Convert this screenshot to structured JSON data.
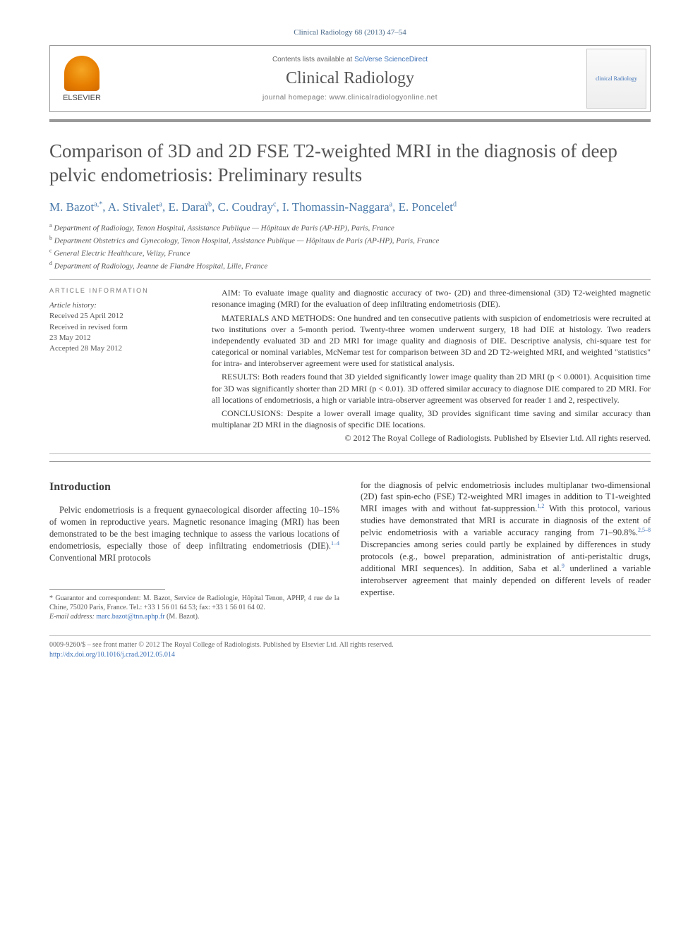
{
  "page_header": "Clinical Radiology 68 (2013) 47–54",
  "masthead": {
    "publisher": "ELSEVIER",
    "contents_prefix": "Contents lists available at ",
    "contents_link": "SciVerse ScienceDirect",
    "journal": "Clinical Radiology",
    "homepage_prefix": "journal homepage: ",
    "homepage_url": "www.clinicalradiologyonline.net",
    "cover_title": "clinical Radiology"
  },
  "article": {
    "title": "Comparison of 3D and 2D FSE T2-weighted MRI in the diagnosis of deep pelvic endometriosis: Preliminary results",
    "authors_html": "M. Bazot",
    "authors": [
      {
        "name": "M. Bazot",
        "marks": "a,*"
      },
      {
        "name": "A. Stivalet",
        "marks": "a"
      },
      {
        "name": "E. Daraï",
        "marks": "b"
      },
      {
        "name": "C. Coudray",
        "marks": "c"
      },
      {
        "name": "I. Thomassin-Naggara",
        "marks": "a"
      },
      {
        "name": "E. Poncelet",
        "marks": "d"
      }
    ],
    "affiliations": [
      {
        "mark": "a",
        "text": "Department of Radiology, Tenon Hospital, Assistance Publique — Hôpitaux de Paris (AP-HP), Paris, France"
      },
      {
        "mark": "b",
        "text": "Department Obstetrics and Gynecology, Tenon Hospital, Assistance Publique — Hôpitaux de Paris (AP-HP), Paris, France"
      },
      {
        "mark": "c",
        "text": "General Electric Healthcare, Velizy, France"
      },
      {
        "mark": "d",
        "text": "Department of Radiology, Jeanne de Flandre Hospital, Lille, France"
      }
    ]
  },
  "info": {
    "heading": "ARTICLE INFORMATION",
    "history_label": "Article history:",
    "received": "Received 25 April 2012",
    "revised1": "Received in revised form",
    "revised2": "23 May 2012",
    "accepted": "Accepted 28 May 2012"
  },
  "abstract": {
    "aim": "AIM: To evaluate image quality and diagnostic accuracy of two- (2D) and three-dimensional (3D) T2-weighted magnetic resonance imaging (MRI) for the evaluation of deep infiltrating endometriosis (DIE).",
    "methods": "MATERIALS AND METHODS: One hundred and ten consecutive patients with suspicion of endometriosis were recruited at two institutions over a 5-month period. Twenty-three women underwent surgery, 18 had DIE at histology. Two readers independently evaluated 3D and 2D MRI for image quality and diagnosis of DIE. Descriptive analysis, chi-square test for categorical or nominal variables, McNemar test for comparison between 3D and 2D T2-weighted MRI, and weighted \"statistics\" for intra- and interobserver agreement were used for statistical analysis.",
    "results": "RESULTS: Both readers found that 3D yielded significantly lower image quality than 2D MRI (p < 0.0001). Acquisition time for 3D was significantly shorter than 2D MRI (p < 0.01). 3D offered similar accuracy to diagnose DIE compared to 2D MRI. For all locations of endometriosis, a high or variable intra-observer agreement was observed for reader 1 and 2, respectively.",
    "conclusions": "CONCLUSIONS: Despite a lower overall image quality, 3D provides significant time saving and similar accuracy than multiplanar 2D MRI in the diagnosis of specific DIE locations.",
    "copyright": "© 2012 The Royal College of Radiologists. Published by Elsevier Ltd. All rights reserved."
  },
  "body": {
    "intro_heading": "Introduction",
    "col1_p1": "Pelvic endometriosis is a frequent gynaecological disorder affecting 10–15% of women in reproductive years. Magnetic resonance imaging (MRI) has been demonstrated to be the best imaging technique to assess the various locations of endometriosis, especially those of deep infiltrating endometriosis (DIE).",
    "col1_ref1": "1–4",
    "col1_p1b": " Conventional MRI protocols",
    "col2_p1a": "for the diagnosis of pelvic endometriosis includes multiplanar two-dimensional (2D) fast spin-echo (FSE) T2-weighted MRI images in addition to T1-weighted MRI images with and without fat-suppression.",
    "col2_ref1": "1,2",
    "col2_p1b": " With this protocol, various studies have demonstrated that MRI is accurate in diagnosis of the extent of pelvic endometriosis with a variable accuracy ranging from 71–90.8%.",
    "col2_ref2": "2,5–8",
    "col2_p1c": " Discrepancies among series could partly be explained by differences in study protocols (e.g., bowel preparation, administration of anti-peristaltic drugs, additional MRI sequences). In addition, Saba et al.",
    "col2_ref3": "9",
    "col2_p1d": " underlined a variable interobserver agreement that mainly depended on different levels of reader expertise."
  },
  "footnotes": {
    "guarantor": "* Guarantor and correspondent: M. Bazot, Service de Radiologie, Hôpital Tenon, APHP, 4 rue de la Chine, 75020 Paris, France. Tel.: +33 1 56 01 64 53; fax: +33 1 56 01 64 02.",
    "email_label": "E-mail address: ",
    "email": "marc.bazot@tnn.aphp.fr",
    "email_suffix": " (M. Bazot)."
  },
  "footer": {
    "line1": "0009-9260/$ – see front matter © 2012 The Royal College of Radiologists. Published by Elsevier Ltd. All rights reserved.",
    "doi": "http://dx.doi.org/10.1016/j.crad.2012.05.014"
  }
}
